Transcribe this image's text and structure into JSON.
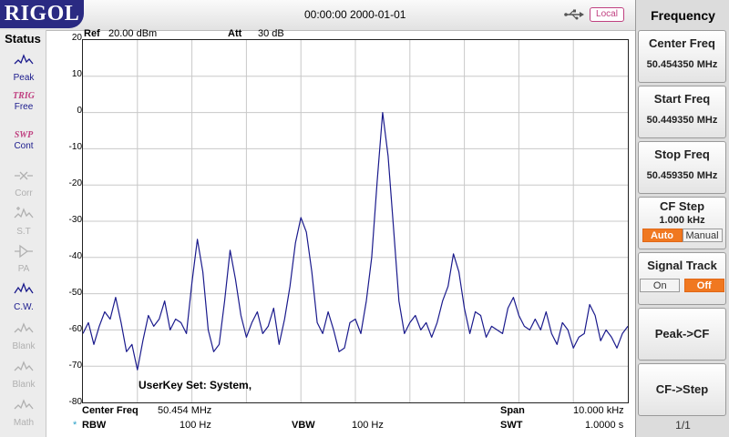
{
  "header": {
    "logo": "RIGOL",
    "datetime": "00:00:00 2000-01-01",
    "local_label": "Local"
  },
  "status": {
    "title": "Status",
    "items": [
      {
        "icon": "peak-icon",
        "label": "Peak",
        "active": true
      },
      {
        "icon": "trig-icon",
        "top": "TRIG",
        "label": "Free",
        "active": true
      },
      {
        "icon": "swp-icon",
        "top": "SWP",
        "label": "Cont",
        "active": true
      },
      {
        "icon": "corr-icon",
        "label": "Corr",
        "active": false
      },
      {
        "icon": "st-icon",
        "label": "S.T",
        "active": false
      },
      {
        "icon": "pa-icon",
        "label": "PA",
        "active": false
      },
      {
        "icon": "cw-icon",
        "label": "C.W.",
        "active": true
      },
      {
        "icon": "blank-icon",
        "label": "Blank",
        "active": false
      },
      {
        "icon": "blank-icon",
        "label": "Blank",
        "active": false
      },
      {
        "icon": "math-icon",
        "label": "Math",
        "active": false
      }
    ]
  },
  "plot_header": {
    "ref_label": "Ref",
    "ref_value": "20.00 dBm",
    "att_label": "Att",
    "att_value": "30 dB"
  },
  "userkey_text": "UserKey Set:   System,",
  "bottom": {
    "center_freq_label": "Center Freq",
    "center_freq_value": "50.454 MHz",
    "span_label": "Span",
    "span_value": "10.000 kHz",
    "rbw_marker": "*",
    "rbw_label": "RBW",
    "rbw_value": "100 Hz",
    "vbw_label": "VBW",
    "vbw_value": "100 Hz",
    "swt_label": "SWT",
    "swt_value": "1.0000 s"
  },
  "menu": {
    "title": "Frequency",
    "center_freq": {
      "label": "Center Freq",
      "value": "50.454350 MHz"
    },
    "start_freq": {
      "label": "Start Freq",
      "value": "50.449350 MHz"
    },
    "stop_freq": {
      "label": "Stop Freq",
      "value": "50.459350 MHz"
    },
    "cf_step": {
      "label": "CF Step",
      "value": "1.000 kHz",
      "auto": "Auto",
      "manual": "Manual",
      "selected": "Auto"
    },
    "signal_track": {
      "label": "Signal Track",
      "on": "On",
      "off": "Off",
      "selected": "Off"
    },
    "peak_cf": "Peak->CF",
    "cf_step_btn": "CF->Step",
    "page": "1/1"
  },
  "colors": {
    "trace": "#1a1a8c",
    "logo_bg": "#2a2a82",
    "accent_orange": "#f07820",
    "status_active": "#1a1a8c",
    "status_inactive": "#b0b0b0",
    "local_border": "#c04080"
  },
  "chart_data": {
    "type": "line",
    "xlim": [
      50.44935,
      50.45935
    ],
    "ylim": [
      -80,
      20
    ],
    "y_ticks": [
      20,
      10,
      0,
      -10,
      -20,
      -30,
      -40,
      -50,
      -60,
      -70,
      -80
    ],
    "grid": true,
    "series": [
      {
        "x": [
          50.44935,
          50.44945,
          50.44955,
          50.44965,
          50.44975,
          50.44985,
          50.44995,
          50.45005,
          50.45015,
          50.45025,
          50.45035,
          50.45045,
          50.45055,
          50.45065,
          50.45075,
          50.45085,
          50.45095,
          50.45105,
          50.45115,
          50.45125,
          50.45135,
          50.45145,
          50.45155,
          50.45165,
          50.45175,
          50.45185,
          50.45195,
          50.45205,
          50.45215,
          50.45225,
          50.45235,
          50.45245,
          50.45255,
          50.45265,
          50.45275,
          50.45285,
          50.45295,
          50.45305,
          50.45315,
          50.45325,
          50.45335,
          50.45345,
          50.45355,
          50.45365,
          50.45375,
          50.45385,
          50.45395,
          50.45405,
          50.45415,
          50.45425,
          50.45435,
          50.45445,
          50.45455,
          50.45465,
          50.45475,
          50.45485,
          50.45495,
          50.45505,
          50.45515,
          50.45525,
          50.45535,
          50.45545,
          50.45555,
          50.45565,
          50.45575,
          50.45585,
          50.45595,
          50.45605,
          50.45615,
          50.45625,
          50.45635,
          50.45645,
          50.45655,
          50.45665,
          50.45675,
          50.45685,
          50.45695,
          50.45705,
          50.45715,
          50.45725,
          50.45735,
          50.45745,
          50.45755,
          50.45765,
          50.45775,
          50.45785,
          50.45795,
          50.45805,
          50.45815,
          50.45825,
          50.45835,
          50.45845,
          50.45855,
          50.45865,
          50.45875,
          50.45885,
          50.45895,
          50.45905,
          50.45915,
          50.45925,
          50.45935
        ],
        "y": [
          -61,
          -58,
          -64,
          -59,
          -55,
          -57,
          -51,
          -58,
          -66,
          -64,
          -71,
          -63,
          -56,
          -59,
          -57,
          -52,
          -60,
          -57,
          -58,
          -61,
          -47,
          -35,
          -44,
          -60,
          -66,
          -64,
          -52,
          -38,
          -46,
          -56,
          -62,
          -58,
          -55,
          -61,
          -59,
          -54,
          -64,
          -57,
          -48,
          -36,
          -29,
          -33,
          -44,
          -58,
          -61,
          -55,
          -60,
          -66,
          -65,
          -58,
          -57,
          -61,
          -52,
          -40,
          -19,
          0,
          -12,
          -32,
          -52,
          -61,
          -58,
          -56,
          -60,
          -58,
          -62,
          -58,
          -52,
          -48,
          -39,
          -44,
          -54,
          -61,
          -55,
          -56,
          -62,
          -59,
          -60,
          -61,
          -54,
          -51,
          -56,
          -59,
          -60,
          -57,
          -60,
          -55,
          -61,
          -64,
          -58,
          -60,
          -65,
          -62,
          -61,
          -53,
          -56,
          -63,
          -60,
          -62,
          -65,
          -61,
          -59
        ]
      }
    ]
  }
}
